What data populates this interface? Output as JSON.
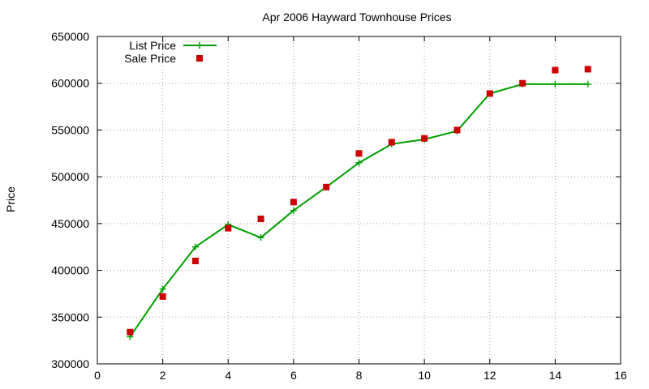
{
  "chart_data": {
    "type": "line",
    "title": "Apr 2006 Hayward Townhouse Prices",
    "xlabel": "",
    "ylabel": "Price",
    "xlim": [
      0,
      16
    ],
    "ylim": [
      300000,
      650000
    ],
    "xticks": [
      0,
      2,
      4,
      6,
      8,
      10,
      12,
      14,
      16
    ],
    "yticks": [
      300000,
      350000,
      400000,
      450000,
      500000,
      550000,
      600000,
      650000
    ],
    "grid": true,
    "legend_position": "top-left",
    "series": [
      {
        "name": "List Price",
        "style": "line+cross",
        "color": "#00a000",
        "points": [
          [
            1,
            329000
          ],
          [
            2,
            380000
          ],
          [
            3,
            425000
          ],
          [
            4,
            449000
          ],
          [
            5,
            435000
          ],
          [
            6,
            464000
          ],
          [
            7,
            489000
          ],
          [
            8,
            515000
          ],
          [
            9,
            535000
          ],
          [
            10,
            540000
          ],
          [
            11,
            549000
          ],
          [
            12,
            589000
          ],
          [
            13,
            599000
          ],
          [
            14,
            599000
          ],
          [
            15,
            599000
          ]
        ]
      },
      {
        "name": "Sale Price",
        "style": "square",
        "color": "#cc0000",
        "points": [
          [
            1,
            334000
          ],
          [
            2,
            372000
          ],
          [
            3,
            410000
          ],
          [
            4,
            445000
          ],
          [
            5,
            455000
          ],
          [
            6,
            473000
          ],
          [
            7,
            489000
          ],
          [
            8,
            525000
          ],
          [
            9,
            537000
          ],
          [
            10,
            541000
          ],
          [
            11,
            550000
          ],
          [
            12,
            589000
          ],
          [
            13,
            600000
          ],
          [
            14,
            614000
          ],
          [
            15,
            615000
          ]
        ]
      }
    ]
  }
}
